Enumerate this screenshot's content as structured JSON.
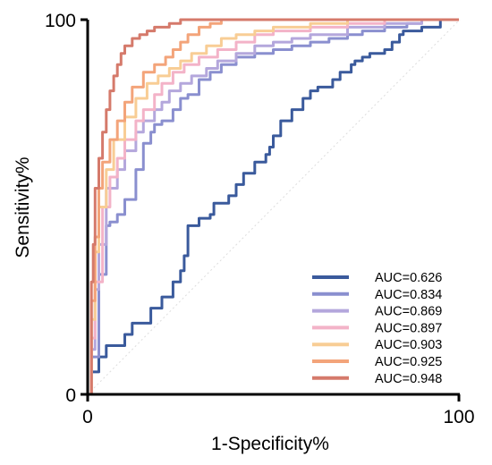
{
  "chart_data": {
    "type": "line",
    "title": "",
    "xlabel": "1-Specificity%",
    "ylabel": "Sensitivity%",
    "xlim": [
      0,
      100
    ],
    "ylim": [
      0,
      100
    ],
    "x_ticks": [
      "0",
      "100"
    ],
    "y_ticks": [
      "0",
      "100"
    ],
    "grid": false,
    "legend_position": "bottom-right",
    "reference_line": {
      "color": "#dddddd",
      "style": "dotted",
      "points": [
        [
          0,
          0
        ],
        [
          100,
          100
        ]
      ]
    },
    "series": [
      {
        "name": "AUC=0.626",
        "color": "#3a5a9c",
        "points": [
          [
            0,
            0
          ],
          [
            1,
            6
          ],
          [
            3,
            10
          ],
          [
            5,
            13
          ],
          [
            10,
            16
          ],
          [
            12,
            19
          ],
          [
            17,
            23
          ],
          [
            20,
            26
          ],
          [
            23,
            30
          ],
          [
            25,
            33
          ],
          [
            26,
            37
          ],
          [
            27,
            45
          ],
          [
            30,
            47
          ],
          [
            33,
            48
          ],
          [
            34,
            51
          ],
          [
            38,
            53
          ],
          [
            40,
            56
          ],
          [
            42,
            59
          ],
          [
            45,
            62
          ],
          [
            48,
            64
          ],
          [
            49,
            66
          ],
          [
            50,
            69
          ],
          [
            52,
            73
          ],
          [
            55,
            76
          ],
          [
            58,
            79
          ],
          [
            60,
            81
          ],
          [
            62,
            82
          ],
          [
            66,
            84
          ],
          [
            68,
            86
          ],
          [
            71,
            88
          ],
          [
            72,
            89
          ],
          [
            74,
            90
          ],
          [
            76,
            91
          ],
          [
            80,
            92
          ],
          [
            82,
            94
          ],
          [
            84,
            96
          ],
          [
            85,
            97
          ],
          [
            90,
            98
          ],
          [
            95,
            100
          ],
          [
            100,
            100
          ]
        ]
      },
      {
        "name": "AUC=0.834",
        "color": "#8a8fcf",
        "points": [
          [
            0,
            0
          ],
          [
            1,
            10
          ],
          [
            3,
            32
          ],
          [
            5,
            45
          ],
          [
            6,
            46
          ],
          [
            8,
            48
          ],
          [
            10,
            52
          ],
          [
            13,
            60
          ],
          [
            15,
            64
          ],
          [
            15,
            67
          ],
          [
            17,
            70
          ],
          [
            18,
            72
          ],
          [
            20,
            73
          ],
          [
            23,
            76
          ],
          [
            25,
            79
          ],
          [
            27,
            80
          ],
          [
            30,
            84
          ],
          [
            33,
            86
          ],
          [
            36,
            88
          ],
          [
            40,
            90
          ],
          [
            45,
            91
          ],
          [
            50,
            92
          ],
          [
            55,
            93
          ],
          [
            60,
            94
          ],
          [
            65,
            95
          ],
          [
            70,
            96
          ],
          [
            74,
            97
          ],
          [
            80,
            98
          ],
          [
            86,
            99
          ],
          [
            90,
            100
          ],
          [
            100,
            100
          ]
        ]
      },
      {
        "name": "AUC=0.869",
        "color": "#b4a7dc",
        "points": [
          [
            0,
            0
          ],
          [
            1,
            12
          ],
          [
            2,
            28
          ],
          [
            3,
            40
          ],
          [
            5,
            55
          ],
          [
            8,
            60
          ],
          [
            10,
            65
          ],
          [
            13,
            70
          ],
          [
            15,
            73
          ],
          [
            18,
            76
          ],
          [
            20,
            78
          ],
          [
            22,
            81
          ],
          [
            25,
            83
          ],
          [
            28,
            85
          ],
          [
            32,
            87
          ],
          [
            35,
            89
          ],
          [
            40,
            91
          ],
          [
            45,
            93
          ],
          [
            50,
            94
          ],
          [
            55,
            95
          ],
          [
            60,
            96
          ],
          [
            70,
            98
          ],
          [
            80,
            99
          ],
          [
            90,
            100
          ],
          [
            100,
            100
          ]
        ]
      },
      {
        "name": "AUC=0.897",
        "color": "#f3b3c8",
        "points": [
          [
            0,
            0
          ],
          [
            1,
            15
          ],
          [
            2,
            30
          ],
          [
            4,
            50
          ],
          [
            6,
            58
          ],
          [
            8,
            63
          ],
          [
            10,
            68
          ],
          [
            13,
            73
          ],
          [
            15,
            76
          ],
          [
            18,
            80
          ],
          [
            20,
            83
          ],
          [
            23,
            86
          ],
          [
            26,
            88
          ],
          [
            30,
            90
          ],
          [
            35,
            92
          ],
          [
            40,
            94
          ],
          [
            45,
            96
          ],
          [
            50,
            97
          ],
          [
            60,
            98
          ],
          [
            70,
            99
          ],
          [
            80,
            100
          ],
          [
            100,
            100
          ]
        ]
      },
      {
        "name": "AUC=0.903",
        "color": "#f8cd95",
        "points": [
          [
            0,
            0
          ],
          [
            1,
            20
          ],
          [
            2,
            38
          ],
          [
            3,
            50
          ],
          [
            5,
            60
          ],
          [
            7,
            68
          ],
          [
            10,
            74
          ],
          [
            13,
            79
          ],
          [
            16,
            83
          ],
          [
            19,
            85
          ],
          [
            22,
            87
          ],
          [
            25,
            89
          ],
          [
            28,
            91
          ],
          [
            32,
            93
          ],
          [
            36,
            95
          ],
          [
            40,
            96
          ],
          [
            45,
            97
          ],
          [
            50,
            98
          ],
          [
            60,
            99
          ],
          [
            70,
            100
          ],
          [
            100,
            100
          ]
        ]
      },
      {
        "name": "AUC=0.925",
        "color": "#f3a47a",
        "points": [
          [
            0,
            0
          ],
          [
            1,
            25
          ],
          [
            2,
            42
          ],
          [
            3,
            55
          ],
          [
            4,
            62
          ],
          [
            6,
            68
          ],
          [
            8,
            73
          ],
          [
            10,
            78
          ],
          [
            12,
            82
          ],
          [
            15,
            86
          ],
          [
            18,
            88
          ],
          [
            21,
            90
          ],
          [
            23,
            92
          ],
          [
            25,
            94
          ],
          [
            27,
            96
          ],
          [
            30,
            98
          ],
          [
            33,
            99
          ],
          [
            36,
            100
          ],
          [
            100,
            100
          ]
        ]
      },
      {
        "name": "AUC=0.948",
        "color": "#d57a6b",
        "points": [
          [
            0,
            0
          ],
          [
            1,
            30
          ],
          [
            1.5,
            40
          ],
          [
            2,
            55
          ],
          [
            3,
            63
          ],
          [
            4,
            70
          ],
          [
            5,
            76
          ],
          [
            6,
            81
          ],
          [
            7,
            85
          ],
          [
            8,
            88
          ],
          [
            9,
            91
          ],
          [
            10,
            93
          ],
          [
            12,
            95
          ],
          [
            14,
            96
          ],
          [
            16,
            97
          ],
          [
            18,
            98
          ],
          [
            20,
            98
          ],
          [
            22,
            99
          ],
          [
            25,
            100
          ],
          [
            100,
            100
          ]
        ]
      }
    ]
  }
}
